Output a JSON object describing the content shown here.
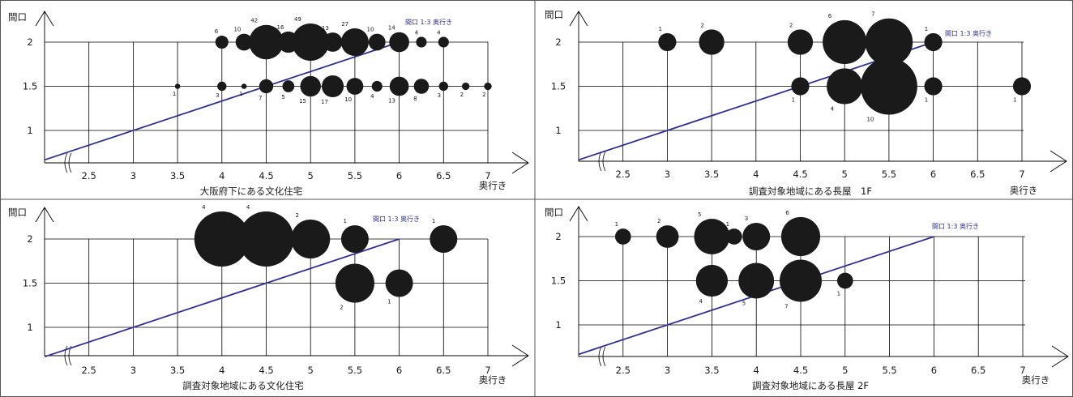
{
  "chart_data": [
    {
      "type": "scatter",
      "title": "大阪府下にある文化住宅",
      "xlabel": "奥行き",
      "ylabel": "間口",
      "x_ticks": [
        "2.5",
        "3",
        "3.5",
        "4",
        "4.5",
        "5",
        "5.5",
        "6",
        "6.5",
        "7"
      ],
      "y_ticks": [
        "1",
        "1.5",
        "2"
      ],
      "xlim": [
        2,
        7
      ],
      "ylim": [
        0.67,
        2.3
      ],
      "reference_line": {
        "label": "間口 1:3 奥行き",
        "ratio": 3,
        "color": "#2e3192"
      },
      "points": [
        {
          "x": 3.5,
          "y": 1.5,
          "count": 1
        },
        {
          "x": 4,
          "y": 1.5,
          "count": 3
        },
        {
          "x": 4.25,
          "y": 1.5,
          "count": 1
        },
        {
          "x": 4.5,
          "y": 1.5,
          "count": 7
        },
        {
          "x": 4.75,
          "y": 1.5,
          "count": 5
        },
        {
          "x": 5,
          "y": 1.5,
          "count": 15
        },
        {
          "x": 5.25,
          "y": 1.5,
          "count": 17
        },
        {
          "x": 5.5,
          "y": 1.5,
          "count": 10
        },
        {
          "x": 5.75,
          "y": 1.5,
          "count": 4
        },
        {
          "x": 6,
          "y": 1.5,
          "count": 13
        },
        {
          "x": 6.25,
          "y": 1.5,
          "count": 8
        },
        {
          "x": 6.5,
          "y": 1.5,
          "count": 3
        },
        {
          "x": 6.75,
          "y": 1.5,
          "count": 2
        },
        {
          "x": 7,
          "y": 1.5,
          "count": 2
        },
        {
          "x": 4,
          "y": 2,
          "count": 6
        },
        {
          "x": 4.25,
          "y": 2,
          "count": 10
        },
        {
          "x": 4.5,
          "y": 2,
          "count": 42
        },
        {
          "x": 4.75,
          "y": 2,
          "count": 16
        },
        {
          "x": 5,
          "y": 2,
          "count": 49
        },
        {
          "x": 5.25,
          "y": 2,
          "count": 13
        },
        {
          "x": 5.5,
          "y": 2,
          "count": 27
        },
        {
          "x": 5.75,
          "y": 2,
          "count": 10
        },
        {
          "x": 6,
          "y": 2,
          "count": 14
        },
        {
          "x": 6.25,
          "y": 2,
          "count": 4
        },
        {
          "x": 6.5,
          "y": 2,
          "count": 4
        }
      ]
    },
    {
      "type": "scatter",
      "title": "調査対象地域にある長屋　1F",
      "xlabel": "奥行き",
      "ylabel": "間口",
      "x_ticks": [
        "2.5",
        "3",
        "3.5",
        "4",
        "4.5",
        "5",
        "5.5",
        "6",
        "6.5",
        "7"
      ],
      "y_ticks": [
        "1",
        "1.5",
        "2"
      ],
      "xlim": [
        2,
        7
      ],
      "ylim": [
        0.67,
        2.3
      ],
      "reference_line": {
        "label": "間口 1:3 奥行き",
        "ratio": 3,
        "color": "#2e3192"
      },
      "points": [
        {
          "x": 3,
          "y": 2,
          "count": 1
        },
        {
          "x": 3.5,
          "y": 2,
          "count": 2
        },
        {
          "x": 4.5,
          "y": 2,
          "count": 2
        },
        {
          "x": 5,
          "y": 2,
          "count": 6
        },
        {
          "x": 5.5,
          "y": 2,
          "count": 7
        },
        {
          "x": 6,
          "y": 2,
          "count": 1
        },
        {
          "x": 4.5,
          "y": 1.5,
          "count": 1
        },
        {
          "x": 5,
          "y": 1.5,
          "count": 4
        },
        {
          "x": 5.5,
          "y": 1.5,
          "count": 10
        },
        {
          "x": 6,
          "y": 1.5,
          "count": 1
        },
        {
          "x": 7,
          "y": 1.5,
          "count": 1
        }
      ]
    },
    {
      "type": "scatter",
      "title": "調査対象地域にある文化住宅",
      "xlabel": "奥行き",
      "ylabel": "間口",
      "x_ticks": [
        "2.5",
        "3",
        "3.5",
        "4",
        "4.5",
        "5",
        "5.5",
        "6",
        "6.5",
        "7"
      ],
      "y_ticks": [
        "1",
        "1.5",
        "2"
      ],
      "xlim": [
        2,
        7
      ],
      "ylim": [
        0.67,
        2.3
      ],
      "reference_line": {
        "label": "間口 1:3 奥行き",
        "ratio": 3,
        "color": "#2e3192"
      },
      "points": [
        {
          "x": 4,
          "y": 2,
          "count": 4
        },
        {
          "x": 4.5,
          "y": 2,
          "count": 4
        },
        {
          "x": 5,
          "y": 2,
          "count": 2
        },
        {
          "x": 5.5,
          "y": 2,
          "count": 1
        },
        {
          "x": 6.5,
          "y": 2,
          "count": 1
        },
        {
          "x": 5.5,
          "y": 1.5,
          "count": 2
        },
        {
          "x": 6,
          "y": 1.5,
          "count": 1
        }
      ]
    },
    {
      "type": "scatter",
      "title": "調査対象地域にある長屋 2F",
      "xlabel": "奥行き",
      "ylabel": "間口",
      "x_ticks": [
        "2.5",
        "3",
        "3.5",
        "4",
        "4.5",
        "5",
        "5.5",
        "6",
        "6.5",
        "7"
      ],
      "y_ticks": [
        "1",
        "1.5",
        "2"
      ],
      "xlim": [
        2,
        7
      ],
      "ylim": [
        0.67,
        2.3
      ],
      "reference_line": {
        "label": "間口 1:3 奥行き",
        "ratio": 3,
        "color": "#2e3192"
      },
      "points": [
        {
          "x": 2.5,
          "y": 2,
          "count": 1
        },
        {
          "x": 3,
          "y": 2,
          "count": 2
        },
        {
          "x": 3.5,
          "y": 2,
          "count": 5
        },
        {
          "x": 3.75,
          "y": 2,
          "count": 1
        },
        {
          "x": 4,
          "y": 2,
          "count": 3
        },
        {
          "x": 4.5,
          "y": 2,
          "count": 6
        },
        {
          "x": 3.5,
          "y": 1.5,
          "count": 4
        },
        {
          "x": 4,
          "y": 1.5,
          "count": 5
        },
        {
          "x": 4.5,
          "y": 1.5,
          "count": 7
        },
        {
          "x": 5,
          "y": 1.5,
          "count": 1
        }
      ]
    }
  ]
}
